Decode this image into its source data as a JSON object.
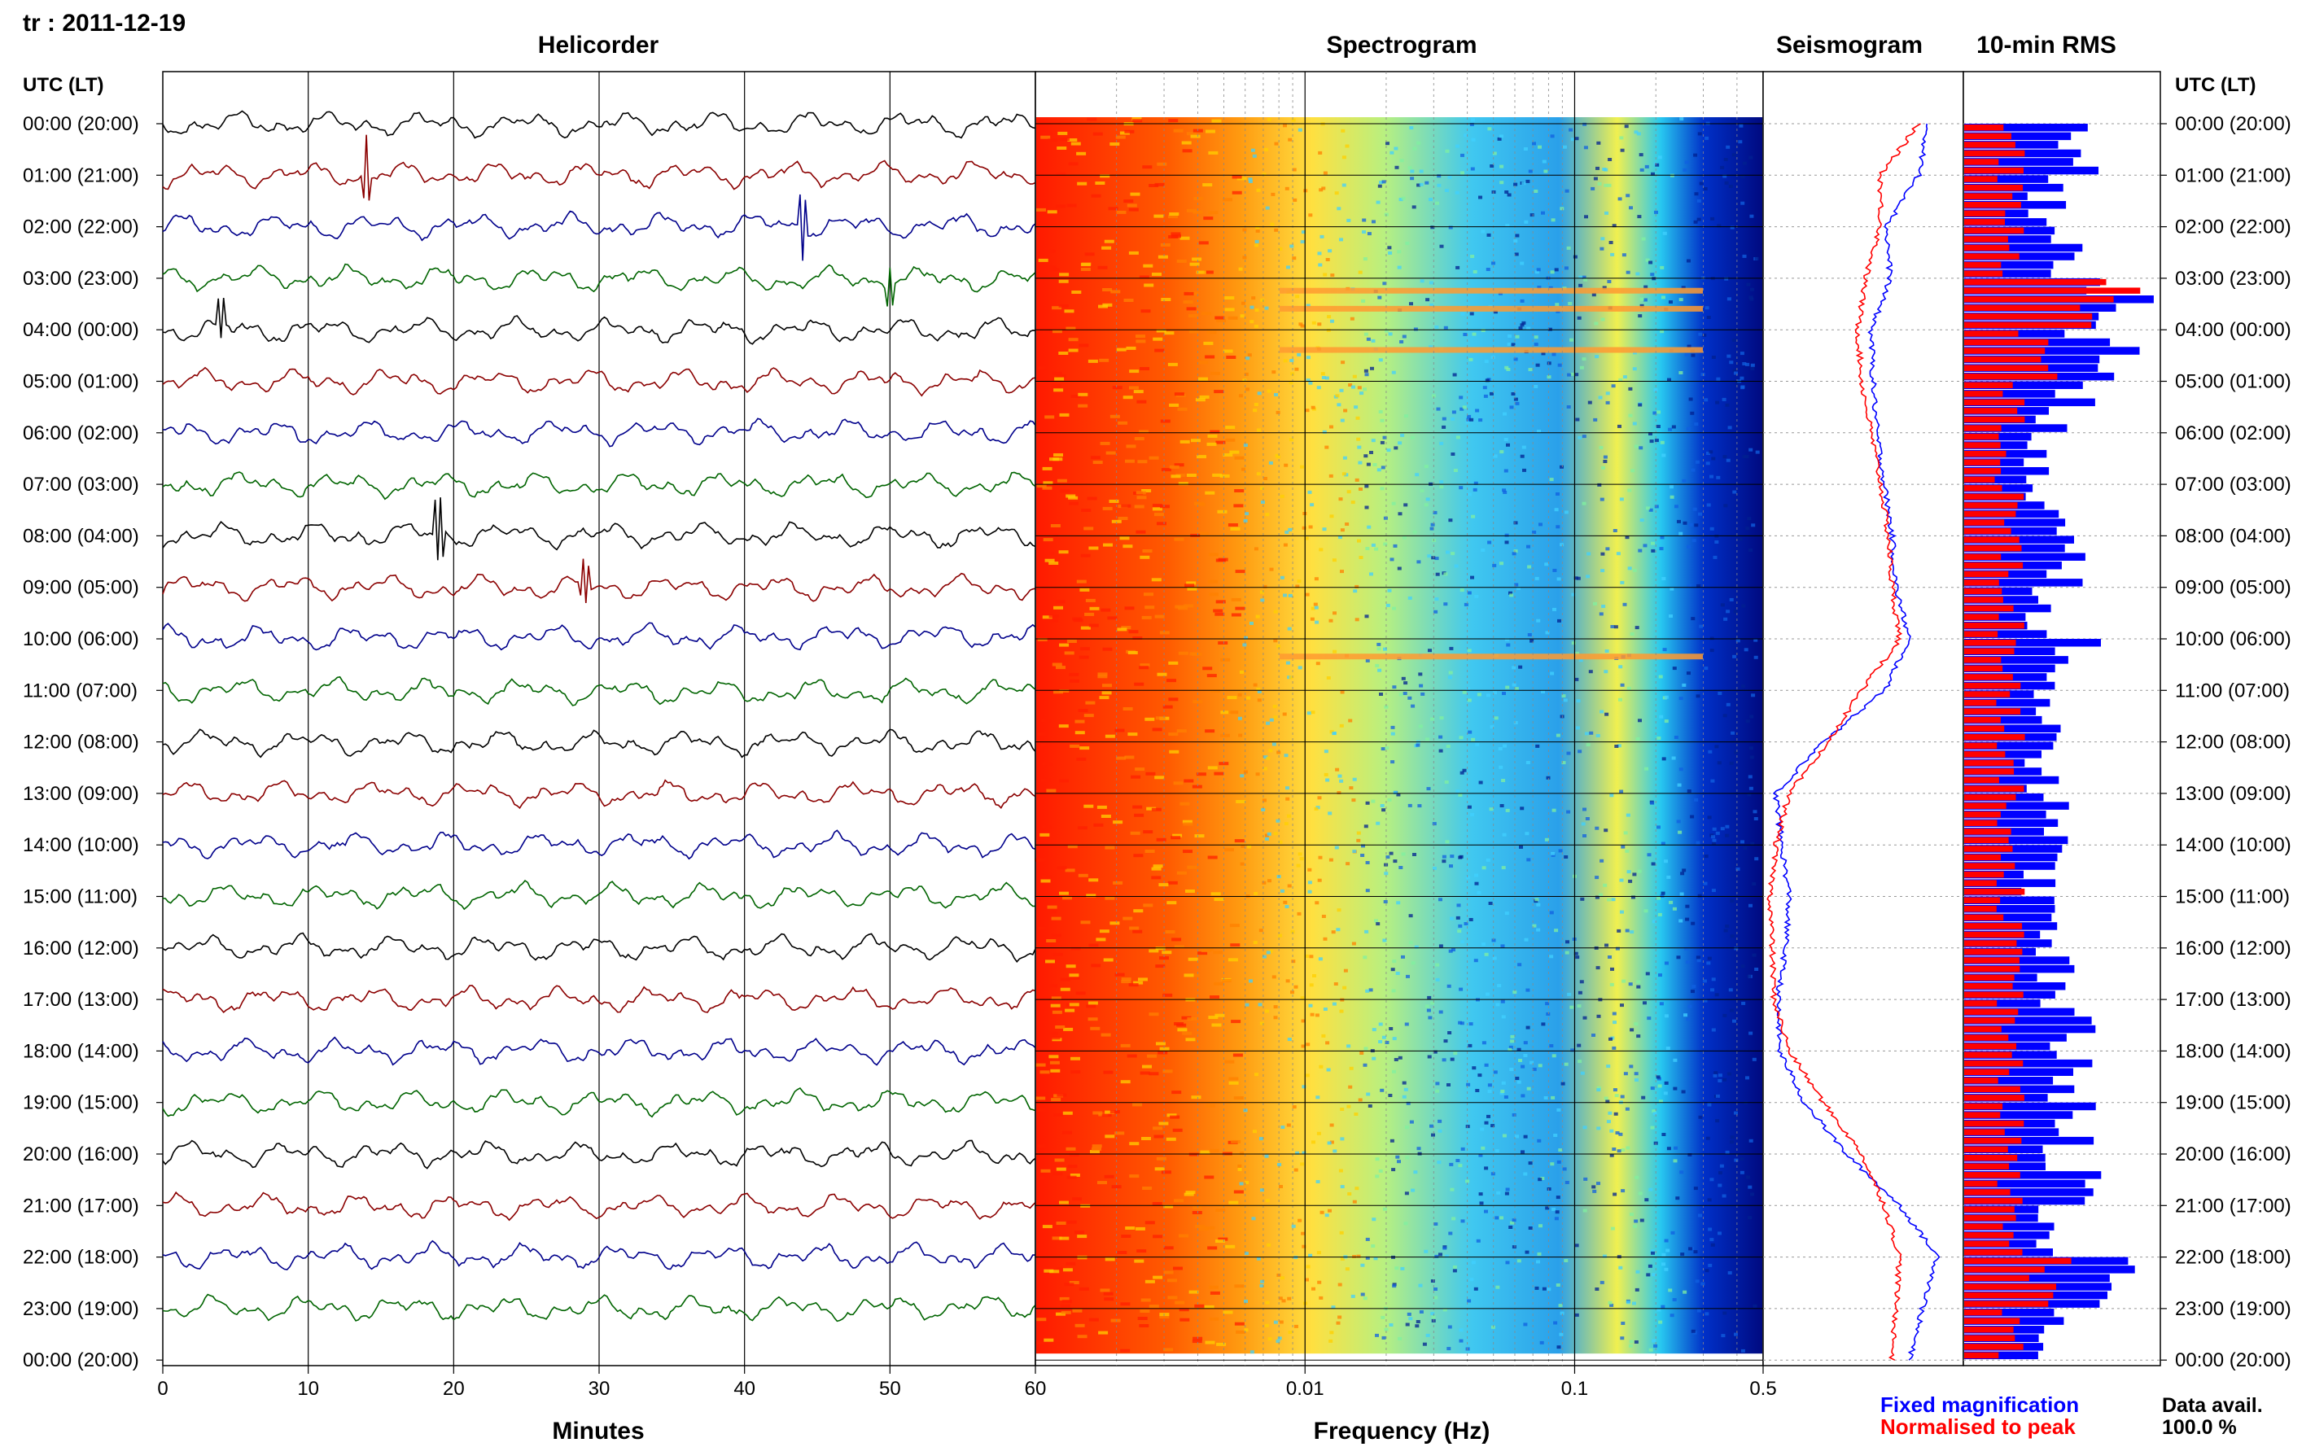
{
  "header": {
    "station_date": "tr : 2011-12-19"
  },
  "panels": {
    "helicorder": "Helicorder",
    "spectrogram": "Spectrogram",
    "seismogram": "Seismogram",
    "rms": "10-min RMS"
  },
  "axes": {
    "left_header": "UTC (LT)",
    "right_header": "UTC (LT)",
    "time_labels": [
      "00:00 (20:00)",
      "01:00 (21:00)",
      "02:00 (22:00)",
      "03:00 (23:00)",
      "04:00 (00:00)",
      "05:00 (01:00)",
      "06:00 (02:00)",
      "07:00 (03:00)",
      "08:00 (04:00)",
      "09:00 (05:00)",
      "10:00 (06:00)",
      "11:00 (07:00)",
      "12:00 (08:00)",
      "13:00 (09:00)",
      "14:00 (10:00)",
      "15:00 (11:00)",
      "16:00 (12:00)",
      "17:00 (13:00)",
      "18:00 (14:00)",
      "19:00 (15:00)",
      "20:00 (16:00)",
      "21:00 (17:00)",
      "22:00 (18:00)",
      "23:00 (19:00)",
      "00:00 (20:00)"
    ],
    "minutes_ticks": [
      "0",
      "10",
      "20",
      "30",
      "40",
      "50",
      "60"
    ],
    "minutes_label": "Minutes",
    "freq_ticks": [
      "0.01",
      "0.1",
      "0.5"
    ],
    "freq_label": "Frequency (Hz)"
  },
  "legend": {
    "fixed": "Fixed magnification",
    "normalised": "Normalised to peak",
    "data_avail_label": "Data avail.",
    "data_avail_value": "100.0 %"
  },
  "colors": {
    "helicorder_traces": [
      "#000000",
      "#8b0000",
      "#00008b",
      "#006400"
    ],
    "fixed_magnification": "#0000ff",
    "normalised": "#ff0000"
  },
  "chart_data": [
    {
      "type": "line",
      "title": "Helicorder",
      "xlabel": "Minutes",
      "xlim": [
        0,
        60
      ],
      "x_ticks": [
        0,
        10,
        20,
        30,
        40,
        50,
        60
      ],
      "rows": 24,
      "trace_color_cycle": [
        "black",
        "dark red",
        "dark blue",
        "dark green"
      ],
      "events": [
        {
          "hour": 1,
          "minute": 14,
          "amplitude": "large"
        },
        {
          "hour": 2,
          "minute": 44,
          "amplitude": "large"
        },
        {
          "hour": 3,
          "minute": 50,
          "amplitude": "medium"
        },
        {
          "hour": 4,
          "minute": 4,
          "amplitude": "medium"
        },
        {
          "hour": 8,
          "minute": 19,
          "amplitude": "large"
        },
        {
          "hour": 9,
          "minute": 29,
          "amplitude": "medium"
        }
      ]
    },
    {
      "type": "heatmap",
      "title": "Spectrogram",
      "xlabel": "Frequency (Hz)",
      "x_scale": "log",
      "xlim": [
        0.001,
        0.5
      ],
      "x_ticks": [
        0.01,
        0.1,
        0.5
      ],
      "rows": 24,
      "narrowband_lines_hours": [
        3.25,
        3.6,
        4.4,
        10.35
      ]
    },
    {
      "type": "line",
      "title": "Seismogram",
      "series": [
        {
          "name": "Fixed magnification",
          "color": "blue",
          "hours": [
            0,
            1,
            2,
            3,
            4,
            5,
            6,
            7,
            8,
            9,
            10,
            11,
            12,
            13,
            14,
            15,
            16,
            17,
            18,
            19,
            20,
            21,
            22,
            23,
            24
          ],
          "values": [
            0.85,
            0.8,
            0.63,
            0.65,
            0.55,
            0.56,
            0.58,
            0.62,
            0.66,
            0.68,
            0.75,
            0.62,
            0.3,
            0.05,
            0.08,
            0.12,
            0.1,
            0.06,
            0.07,
            0.2,
            0.42,
            0.7,
            0.9,
            0.82,
            0.75
          ]
        },
        {
          "name": "Normalised to peak",
          "color": "red",
          "hours": [
            0,
            1,
            2,
            3,
            4,
            5,
            6,
            7,
            8,
            9,
            10,
            11,
            12,
            13,
            14,
            15,
            16,
            17,
            18,
            19,
            20,
            21,
            22,
            23,
            24
          ],
          "values": [
            0.8,
            0.6,
            0.6,
            0.52,
            0.48,
            0.5,
            0.55,
            0.6,
            0.64,
            0.66,
            0.7,
            0.5,
            0.32,
            0.12,
            0.05,
            0.02,
            0.03,
            0.04,
            0.12,
            0.3,
            0.5,
            0.62,
            0.7,
            0.68,
            0.66
          ]
        }
      ]
    },
    {
      "type": "bar",
      "title": "10-min RMS",
      "orientation": "horizontal",
      "bars_per_hour": 6,
      "series": [
        {
          "name": "Fixed magnification",
          "color": "blue",
          "hourly_values": [
            0.8,
            0.55,
            0.6,
            1.0,
            0.9,
            0.65,
            0.55,
            0.5,
            0.7,
            0.55,
            0.72,
            0.6,
            0.55,
            0.55,
            0.5,
            0.5,
            0.55,
            0.65,
            0.72,
            0.72,
            0.72,
            0.55,
            1.0,
            0.5
          ]
        },
        {
          "name": "Normalised to peak",
          "color": "red",
          "hourly_values": [
            0.3,
            0.3,
            0.3,
            1.0,
            0.5,
            0.3,
            0.25,
            0.3,
            0.3,
            0.3,
            0.3,
            0.3,
            0.3,
            0.3,
            0.3,
            0.3,
            0.3,
            0.3,
            0.3,
            0.3,
            0.3,
            0.3,
            0.6,
            0.3
          ]
        }
      ]
    }
  ]
}
